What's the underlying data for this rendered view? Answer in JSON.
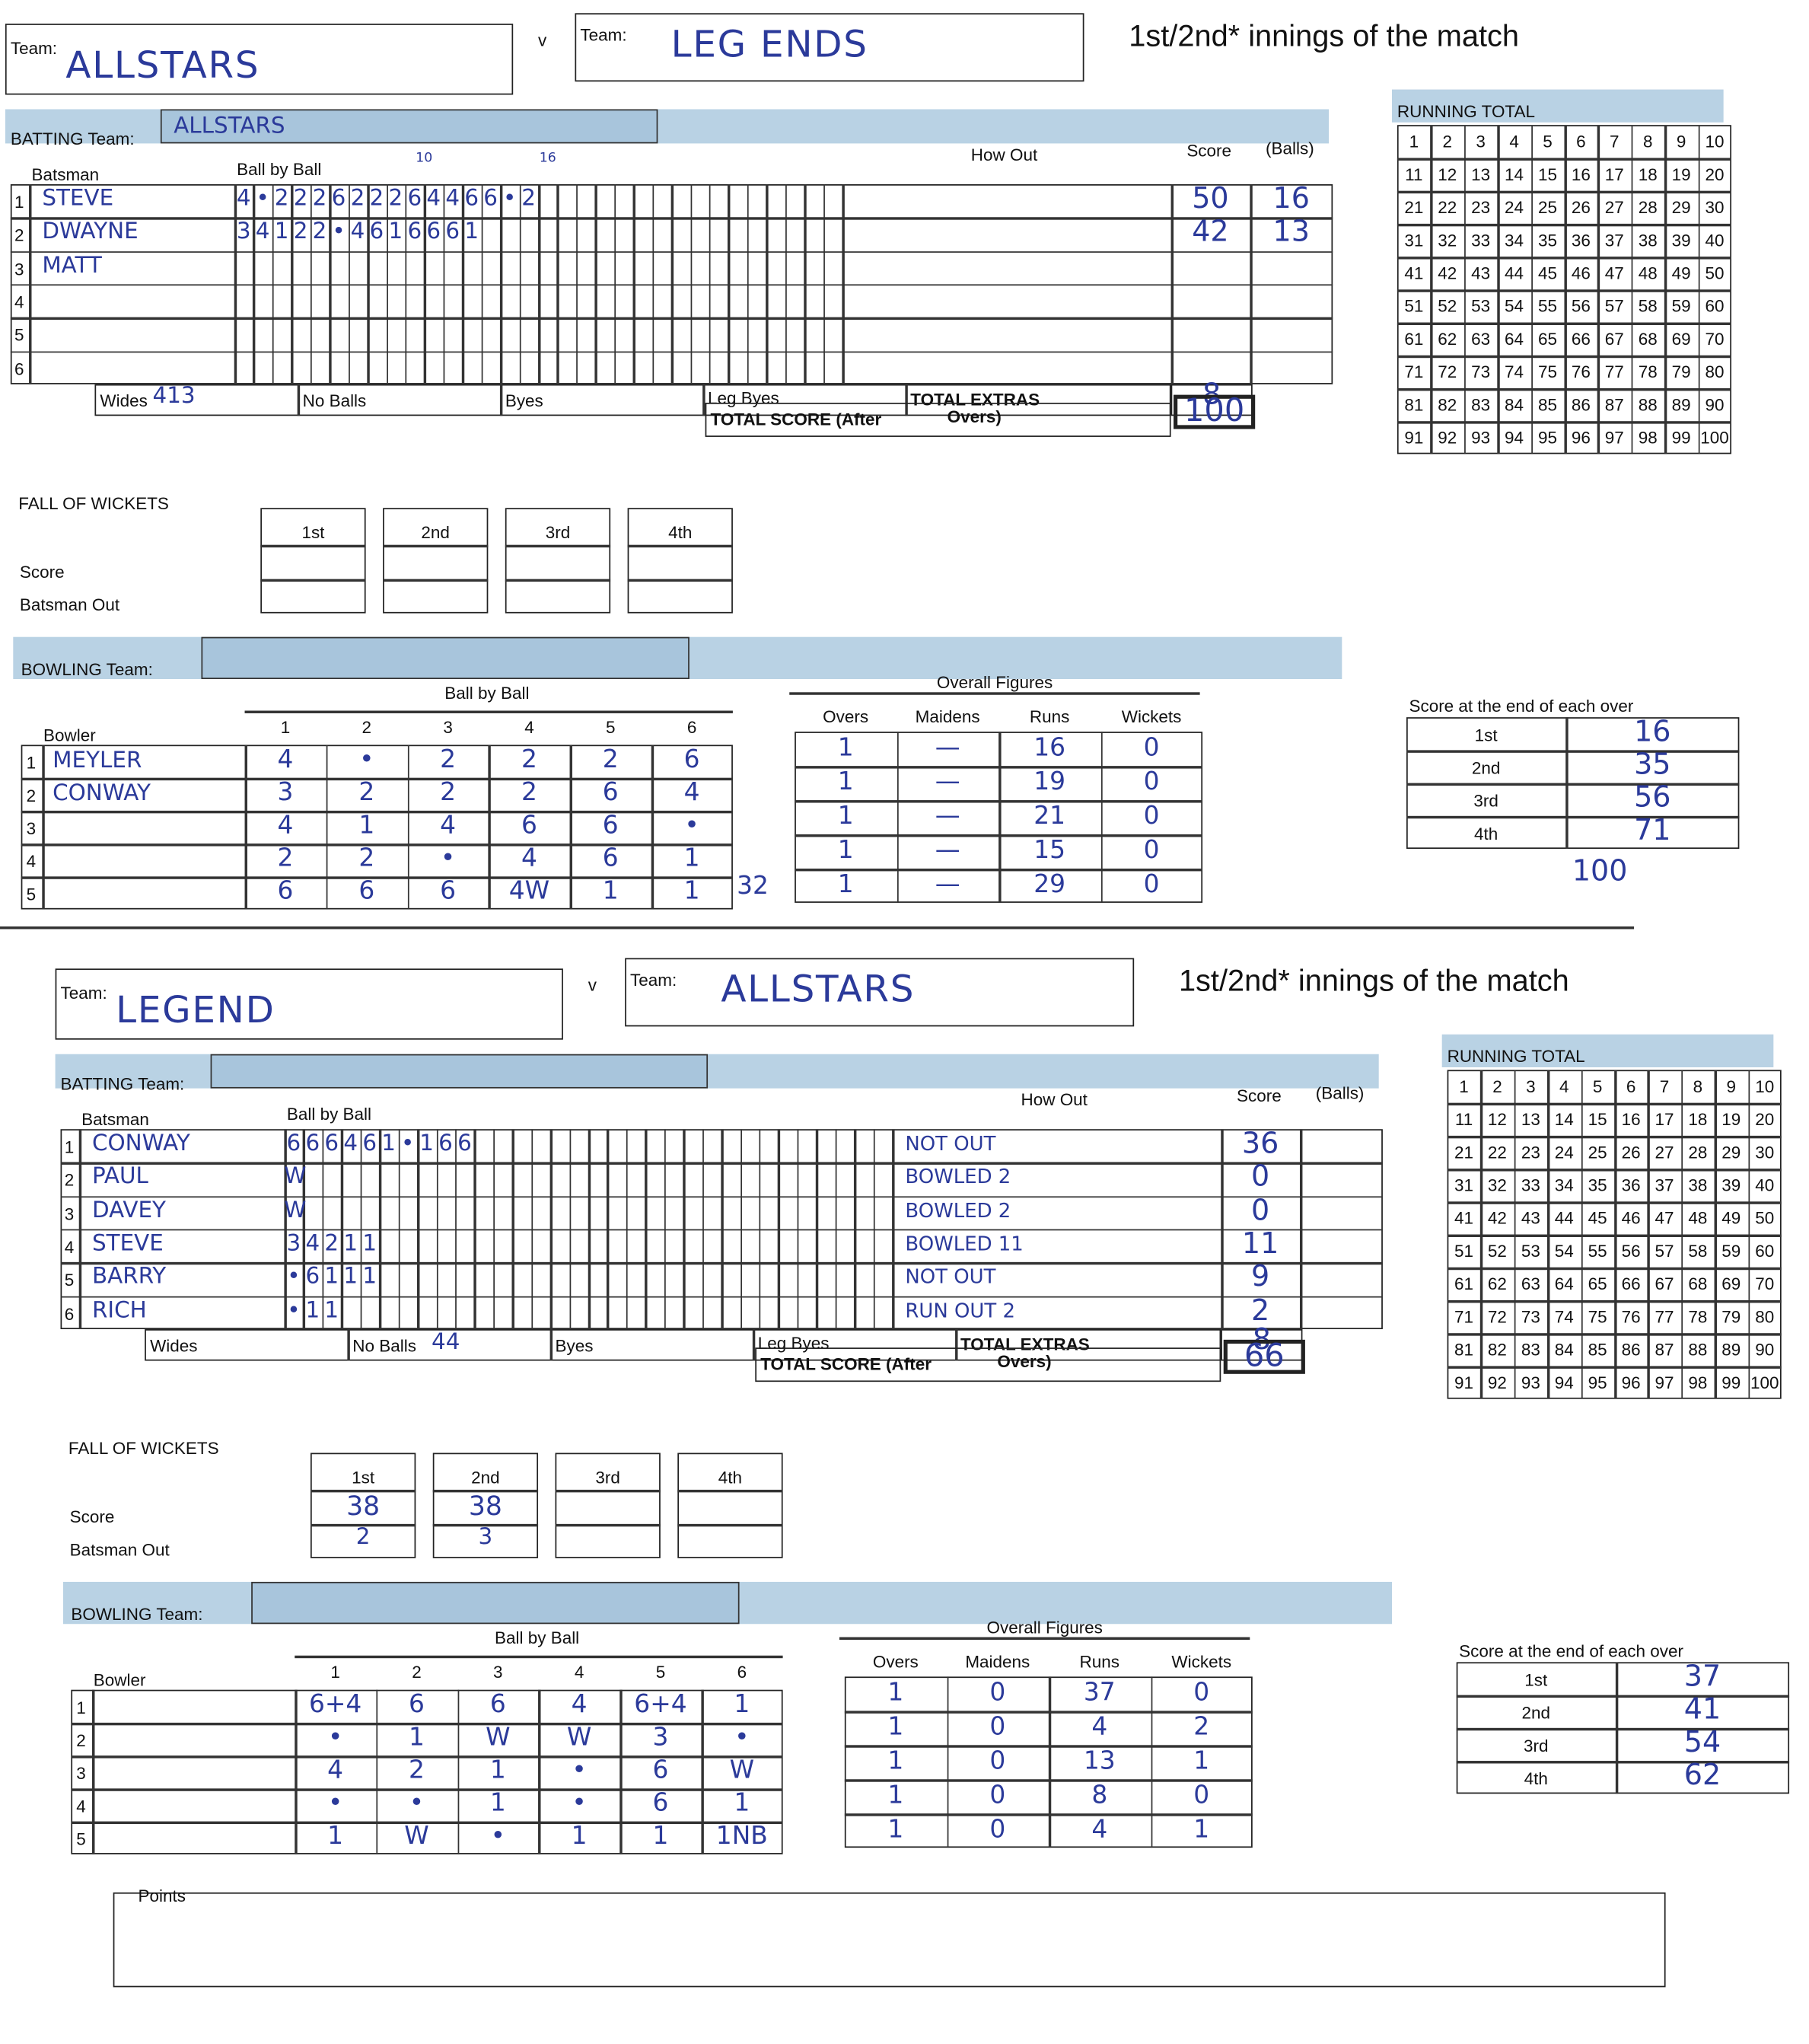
{
  "innings": [
    {
      "header": {
        "team_label": "Team:",
        "team_a": "ALLSTARS",
        "versus": "v",
        "team_b_label": "Team:",
        "team_b": "LEG ENDS",
        "innings_label": "1st/2nd* innings of the match"
      },
      "batting": {
        "label": "BATTING Team:",
        "team": "ALLSTARS",
        "batsman_header": "Batsman",
        "ball_by_ball_header": "Ball by Ball",
        "ball_marks": [
          "10",
          "16"
        ],
        "how_out_header": "How Out",
        "score_header": "Score",
        "balls_header": "(Balls)",
        "rows": [
          {
            "no": "1",
            "name": "STEVE",
            "balls": [
              "4",
              "•",
              "2",
              "2",
              "2",
              "6",
              "2",
              "2",
              "2",
              "6",
              "4",
              "4",
              "6",
              "6",
              "•",
              "2"
            ],
            "score": "50",
            "balls_faced": "16"
          },
          {
            "no": "2",
            "name": "DWAYNE",
            "balls": [
              "3",
              "4",
              "1",
              "2",
              "2",
              "•",
              "4",
              "6",
              "1",
              "6",
              "6",
              "6",
              "1"
            ],
            "score": "42",
            "balls_faced": "13"
          },
          {
            "no": "3",
            "name": "MATT"
          },
          {
            "no": "4"
          },
          {
            "no": "5"
          },
          {
            "no": "6"
          }
        ],
        "extras": {
          "wides_label": "Wides",
          "wides": "413",
          "no_balls_label": "No Balls",
          "byes_label": "Byes",
          "leg_byes_label": "Leg Byes",
          "total_extras_label": "TOTAL EXTRAS",
          "total_extras": "8",
          "total_score_label": "TOTAL SCORE (After",
          "overs_label": "Overs)",
          "total_score": "100"
        }
      },
      "running_total": {
        "label": "RUNNING TOTAL",
        "numbers": [
          1,
          2,
          3,
          4,
          5,
          6,
          7,
          8,
          9,
          10,
          11,
          12,
          13,
          14,
          15,
          16,
          17,
          18,
          19,
          20,
          21,
          22,
          23,
          24,
          25,
          26,
          27,
          28,
          29,
          30,
          31,
          32,
          33,
          34,
          35,
          36,
          37,
          38,
          39,
          40,
          41,
          42,
          43,
          44,
          45,
          46,
          47,
          48,
          49,
          50,
          51,
          52,
          53,
          54,
          55,
          56,
          57,
          58,
          59,
          60,
          61,
          62,
          63,
          64,
          65,
          66,
          67,
          68,
          69,
          70,
          71,
          72,
          73,
          74,
          75,
          76,
          77,
          78,
          79,
          80,
          81,
          82,
          83,
          84,
          85,
          86,
          87,
          88,
          89,
          90,
          91,
          92,
          93,
          94,
          95,
          96,
          97,
          98,
          99,
          100
        ]
      },
      "fall_of_wickets": {
        "label": "FALL OF WICKETS",
        "score_label": "Score",
        "batsman_out_label": "Batsman Out",
        "wickets": [
          {
            "label": "1st"
          },
          {
            "label": "2nd"
          },
          {
            "label": "3rd"
          },
          {
            "label": "4th"
          }
        ]
      },
      "bowling": {
        "label": "BOWLING Team:",
        "ball_by_ball_header": "Ball by Ball",
        "bowler_header": "Bowler",
        "ball_numbers": [
          "1",
          "2",
          "3",
          "4",
          "5",
          "6"
        ],
        "overall_figures_header": "Overall Figures",
        "figure_headers": [
          "Overs",
          "Maidens",
          "Runs",
          "Wickets"
        ],
        "rows": [
          {
            "no": "1",
            "name": "MEYLER",
            "balls": [
              "4",
              "•",
              "2",
              "2",
              "2",
              "6"
            ],
            "figures": [
              "1",
              "—",
              "16",
              "0"
            ]
          },
          {
            "no": "2",
            "name": "CONWAY",
            "balls": [
              "3",
              "2",
              "2",
              "2",
              "6",
              "4"
            ],
            "figures": [
              "1",
              "—",
              "19",
              "0"
            ]
          },
          {
            "no": "3",
            "balls": [
              "4",
              "1",
              "4",
              "6",
              "6",
              "•"
            ],
            "figures": [
              "1",
              "—",
              "21",
              "0"
            ]
          },
          {
            "no": "4",
            "balls": [
              "2",
              "2",
              "•",
              "4",
              "6",
              "1"
            ],
            "figures": [
              "1",
              "—",
              "15",
              "0"
            ]
          },
          {
            "no": "5",
            "balls": [
              "6",
              "6",
              "6",
              "4W",
              "1",
              "1"
            ],
            "figures": [
              "1",
              "—",
              "29",
              "0"
            ]
          }
        ],
        "note": "32"
      },
      "over_scores": {
        "label": "Score at the end of each over",
        "rows": [
          {
            "over": "1st",
            "score": "16"
          },
          {
            "over": "2nd",
            "score": "35"
          },
          {
            "over": "3rd",
            "score": "56"
          },
          {
            "over": "4th",
            "score": "71"
          }
        ],
        "final": "100"
      }
    },
    {
      "header": {
        "team_label": "Team:",
        "team_a": "LEGEND",
        "versus": "v",
        "team_b_label": "Team:",
        "team_b": "ALLSTARS",
        "innings_label": "1st/2nd* innings of the match"
      },
      "batting": {
        "label": "BATTING Team:",
        "batsman_header": "Batsman",
        "ball_by_ball_header": "Ball by Ball",
        "how_out_header": "How Out",
        "score_header": "Score",
        "balls_header": "(Balls)",
        "rows": [
          {
            "no": "1",
            "name": "CONWAY",
            "balls": [
              "6",
              "6",
              "6",
              "4",
              "6",
              "1",
              "•",
              "1",
              "6",
              "6"
            ],
            "how_out": "NOT OUT",
            "score": "36"
          },
          {
            "no": "2",
            "name": "PAUL",
            "balls": [
              "W"
            ],
            "how_out": "BOWLED 2",
            "score": "0"
          },
          {
            "no": "3",
            "name": "DAVEY",
            "balls": [
              "W"
            ],
            "how_out": "BOWLED 2",
            "score": "0"
          },
          {
            "no": "4",
            "name": "STEVE",
            "balls": [
              "3",
              "4",
              "2",
              "1",
              "1"
            ],
            "how_out": "BOWLED 11",
            "score": "11"
          },
          {
            "no": "5",
            "name": "BARRY",
            "balls": [
              "•",
              "6",
              "1",
              "1",
              "1"
            ],
            "how_out": "NOT OUT",
            "score": "9"
          },
          {
            "no": "6",
            "name": "RICH",
            "balls": [
              "•",
              "1",
              "1"
            ],
            "how_out": "RUN OUT 2",
            "score": "2"
          }
        ],
        "extras": {
          "wides_label": "Wides",
          "no_balls_label": "No Balls",
          "no_balls": "44",
          "byes_label": "Byes",
          "leg_byes_label": "Leg Byes",
          "total_extras_label": "TOTAL EXTRAS",
          "total_extras": "8",
          "total_score_label": "TOTAL SCORE (After",
          "overs_label": "Overs)",
          "total_score": "66"
        }
      },
      "running_total": {
        "label": "RUNNING TOTAL",
        "numbers": [
          1,
          2,
          3,
          4,
          5,
          6,
          7,
          8,
          9,
          10,
          11,
          12,
          13,
          14,
          15,
          16,
          17,
          18,
          19,
          20,
          21,
          22,
          23,
          24,
          25,
          26,
          27,
          28,
          29,
          30,
          31,
          32,
          33,
          34,
          35,
          36,
          37,
          38,
          39,
          40,
          41,
          42,
          43,
          44,
          45,
          46,
          47,
          48,
          49,
          50,
          51,
          52,
          53,
          54,
          55,
          56,
          57,
          58,
          59,
          60,
          61,
          62,
          63,
          64,
          65,
          66,
          67,
          68,
          69,
          70,
          71,
          72,
          73,
          74,
          75,
          76,
          77,
          78,
          79,
          80,
          81,
          82,
          83,
          84,
          85,
          86,
          87,
          88,
          89,
          90,
          91,
          92,
          93,
          94,
          95,
          96,
          97,
          98,
          99,
          100
        ]
      },
      "fall_of_wickets": {
        "label": "FALL OF WICKETS",
        "score_label": "Score",
        "batsman_out_label": "Batsman Out",
        "wickets": [
          {
            "label": "1st",
            "score": "38",
            "batsman_out": "2"
          },
          {
            "label": "2nd",
            "score": "38",
            "batsman_out": "3"
          },
          {
            "label": "3rd"
          },
          {
            "label": "4th"
          }
        ]
      },
      "bowling": {
        "label": "BOWLING Team:",
        "ball_by_ball_header": "Ball by Ball",
        "bowler_header": "Bowler",
        "ball_numbers": [
          "1",
          "2",
          "3",
          "4",
          "5",
          "6"
        ],
        "overall_figures_header": "Overall Figures",
        "figure_headers": [
          "Overs",
          "Maidens",
          "Runs",
          "Wickets"
        ],
        "rows": [
          {
            "no": "1",
            "balls": [
              "6+4",
              "6",
              "6",
              "4",
              "6+4",
              "1"
            ],
            "figures": [
              "1",
              "0",
              "37",
              "0"
            ]
          },
          {
            "no": "2",
            "balls": [
              "•",
              "1",
              "W",
              "W",
              "3",
              "•"
            ],
            "figures": [
              "1",
              "0",
              "4",
              "2"
            ]
          },
          {
            "no": "3",
            "balls": [
              "4",
              "2",
              "1",
              "•",
              "6",
              "W"
            ],
            "figures": [
              "1",
              "0",
              "13",
              "1"
            ]
          },
          {
            "no": "4",
            "balls": [
              "•",
              "•",
              "1",
              "•",
              "6",
              "1"
            ],
            "figures": [
              "1",
              "0",
              "8",
              "0"
            ]
          },
          {
            "no": "5",
            "balls": [
              "1",
              "W",
              "•",
              "1",
              "1",
              "1NB"
            ],
            "figures": [
              "1",
              "0",
              "4",
              "1"
            ]
          }
        ]
      },
      "over_scores": {
        "label": "Score at the end of each over",
        "rows": [
          {
            "over": "1st",
            "score": "37"
          },
          {
            "over": "2nd",
            "score": "41"
          },
          {
            "over": "3rd",
            "score": "54"
          },
          {
            "over": "4th",
            "score": "62"
          }
        ]
      }
    }
  ],
  "points": {
    "label": "Points"
  }
}
